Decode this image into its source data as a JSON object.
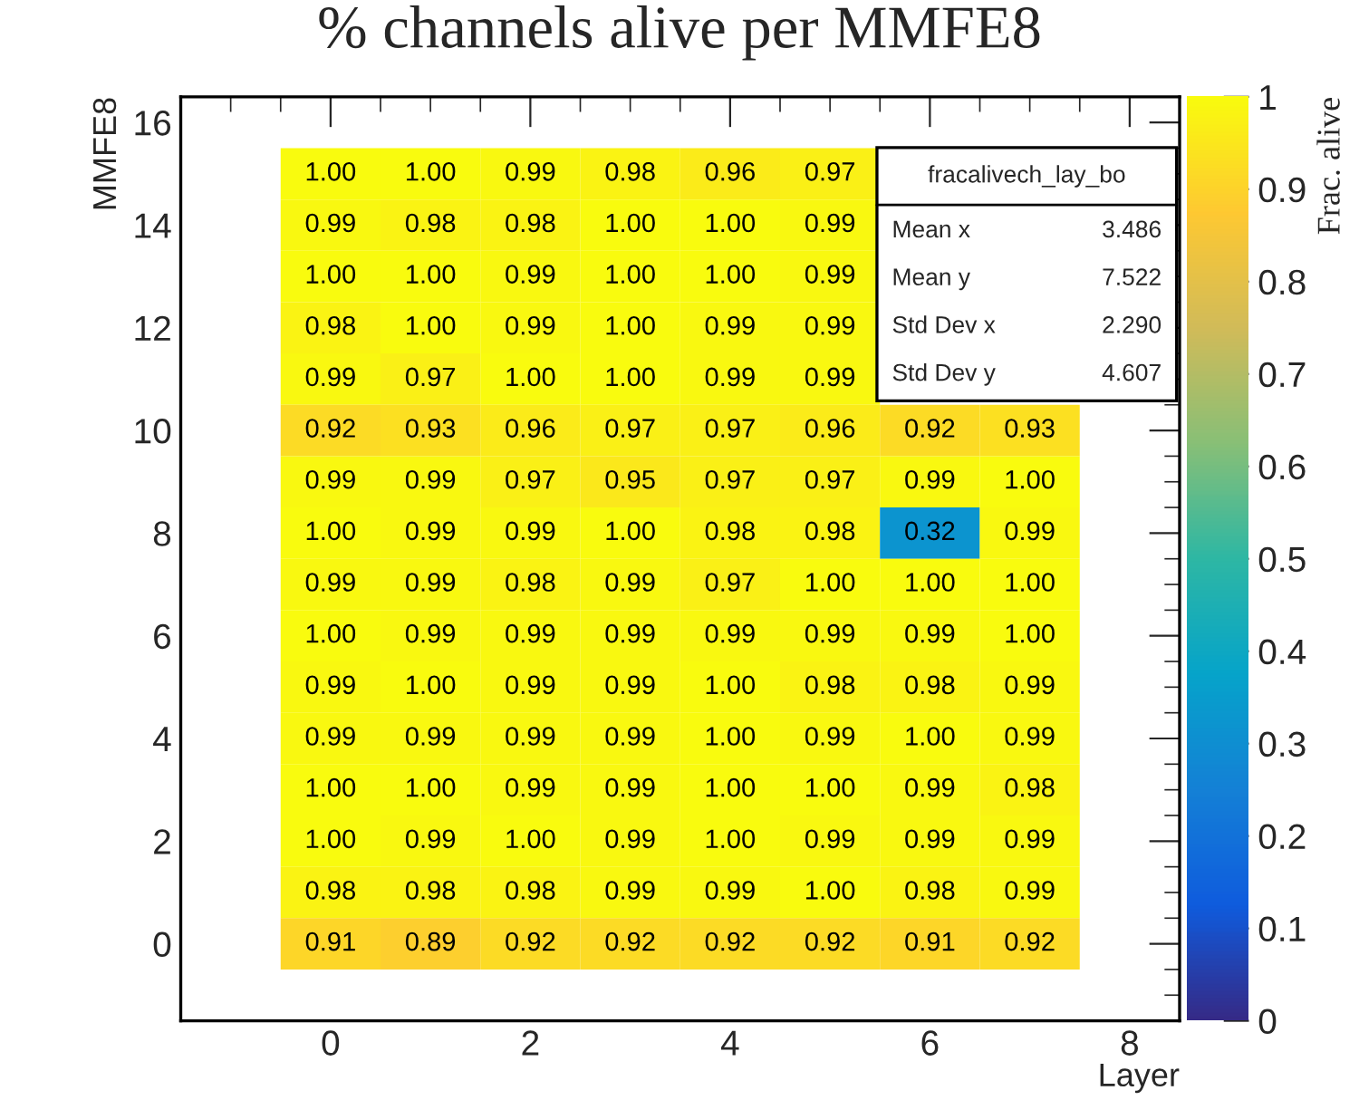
{
  "chart_data": {
    "type": "heatmap",
    "title": "% channels alive per MMFE8",
    "xlabel": "Layer",
    "ylabel": "MMFE8",
    "clabel": "Frac. alive",
    "x": [
      0,
      1,
      2,
      3,
      4,
      5,
      6,
      7
    ],
    "y": [
      15,
      14,
      13,
      12,
      11,
      10,
      9,
      8,
      7,
      6,
      5,
      4,
      3,
      2,
      1,
      0
    ],
    "cells": [
      [
        1.0,
        1.0,
        0.99,
        0.98,
        0.96,
        0.97,
        null,
        null
      ],
      [
        0.99,
        0.98,
        0.98,
        1.0,
        1.0,
        0.99,
        null,
        null
      ],
      [
        1.0,
        1.0,
        0.99,
        1.0,
        1.0,
        0.99,
        null,
        null
      ],
      [
        0.98,
        1.0,
        0.99,
        1.0,
        0.99,
        0.99,
        null,
        null
      ],
      [
        0.99,
        0.97,
        1.0,
        1.0,
        0.99,
        0.99,
        null,
        null
      ],
      [
        0.92,
        0.93,
        0.96,
        0.97,
        0.97,
        0.96,
        0.92,
        0.93
      ],
      [
        0.99,
        0.99,
        0.97,
        0.95,
        0.97,
        0.97,
        0.99,
        1.0
      ],
      [
        1.0,
        0.99,
        0.99,
        1.0,
        0.98,
        0.98,
        0.32,
        0.99
      ],
      [
        0.99,
        0.99,
        0.98,
        0.99,
        0.97,
        1.0,
        1.0,
        1.0
      ],
      [
        1.0,
        0.99,
        0.99,
        0.99,
        0.99,
        0.99,
        0.99,
        1.0
      ],
      [
        0.99,
        1.0,
        0.99,
        0.99,
        1.0,
        0.98,
        0.98,
        0.99
      ],
      [
        0.99,
        0.99,
        0.99,
        0.99,
        1.0,
        0.99,
        1.0,
        0.99
      ],
      [
        1.0,
        1.0,
        0.99,
        0.99,
        1.0,
        1.0,
        0.99,
        0.98
      ],
      [
        1.0,
        0.99,
        1.0,
        0.99,
        1.0,
        0.99,
        0.99,
        0.99
      ],
      [
        0.98,
        0.98,
        0.98,
        0.99,
        0.99,
        1.0,
        0.98,
        0.99
      ],
      [
        0.91,
        0.89,
        0.92,
        0.92,
        0.92,
        0.92,
        0.91,
        0.92
      ]
    ],
    "cell_labels": [
      [
        "1.00",
        "1.00",
        "0.99",
        "0.98",
        "0.96",
        "0.97",
        null,
        null
      ],
      [
        "0.99",
        "0.98",
        "0.98",
        "1.00",
        "1.00",
        "0.99",
        null,
        null
      ],
      [
        "1.00",
        "1.00",
        "0.99",
        "1.00",
        "1.00",
        "0.99",
        null,
        null
      ],
      [
        "0.98",
        "1.00",
        "0.99",
        "1.00",
        "0.99",
        "0.99",
        null,
        null
      ],
      [
        "0.99",
        "0.97",
        "1.00",
        "1.00",
        "0.99",
        "0.99",
        null,
        null
      ],
      [
        "0.92",
        "0.93",
        "0.96",
        "0.97",
        "0.97",
        "0.96",
        "0.92",
        "0.93"
      ],
      [
        "0.99",
        "0.99",
        "0.97",
        "0.95",
        "0.97",
        "0.97",
        "0.99",
        "1.00"
      ],
      [
        "1.00",
        "0.99",
        "0.99",
        "1.00",
        "0.98",
        "0.98",
        "0.32",
        "0.99"
      ],
      [
        "0.99",
        "0.99",
        "0.98",
        "0.99",
        "0.97",
        "1.00",
        "1.00",
        "1.00"
      ],
      [
        "1.00",
        "0.99",
        "0.99",
        "0.99",
        "0.99",
        "0.99",
        "0.99",
        "1.00"
      ],
      [
        "0.99",
        "1.00",
        "0.99",
        "0.99",
        "1.00",
        "0.98",
        "0.98",
        "0.99"
      ],
      [
        "0.99",
        "0.99",
        "0.99",
        "0.99",
        "1.00",
        "0.99",
        "1.00",
        "0.99"
      ],
      [
        "1.00",
        "1.00",
        "0.99",
        "0.99",
        "1.00",
        "1.00",
        "0.99",
        "0.98"
      ],
      [
        "1.00",
        "0.99",
        "1.00",
        "0.99",
        "1.00",
        "0.99",
        "0.99",
        "0.99"
      ],
      [
        "0.98",
        "0.98",
        "0.98",
        "0.99",
        "0.99",
        "1.00",
        "0.98",
        "0.99"
      ],
      [
        "0.91",
        "0.89",
        "0.92",
        "0.92",
        "0.92",
        "0.92",
        "0.91",
        "0.92"
      ]
    ],
    "xlim": [
      -1.5,
      8.5
    ],
    "xticks": [
      0,
      2,
      4,
      6,
      8
    ],
    "ylim": [
      -1.5,
      16.5
    ],
    "yticks": [
      0,
      2,
      4,
      6,
      8,
      10,
      12,
      14,
      16
    ],
    "clim": [
      0,
      1
    ],
    "cticks": [
      0,
      0.1,
      0.2,
      0.3,
      0.4,
      0.5,
      0.6,
      0.7,
      0.8,
      0.9,
      1
    ],
    "annotations": [
      "fracalivech_lay_bo",
      "Mean x",
      "3.486",
      "Mean y",
      "7.522",
      "Std Dev x",
      "2.290",
      "Std Dev y",
      "4.607"
    ],
    "grid": false
  }
}
